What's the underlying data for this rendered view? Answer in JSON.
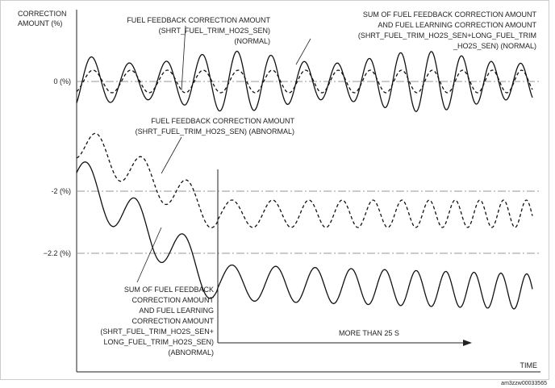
{
  "axis": {
    "y_label": [
      "CORRECTION",
      "AMOUNT (%)"
    ],
    "x_label": "TIME",
    "levels": [
      "0 (%)",
      "-2 (%)",
      "−2.2 (%)"
    ]
  },
  "annotations": {
    "normal_feedback": [
      "FUEL FEEDBACK CORRECTION AMOUNT",
      "(SHRT_FUEL_TRIM_HO2S_SEN)",
      "(NORMAL)"
    ],
    "normal_sum": [
      "SUM OF FUEL FEEDBACK CORRECTION AMOUNT",
      "AND FUEL LEARNING CORRECTION AMOUNT",
      "(SHRT_FUEL_TRIM_HO2S_SEN+LONG_FUEL_TRIM",
      "_HO2S_SEN) (NORMAL)"
    ],
    "abnormal_feedback": [
      "FUEL FEEDBACK CORRECTION AMOUNT",
      "(SHRT_FUEL_TRIM_HO2S_SEN) (ABNORMAL)"
    ],
    "abnormal_sum": [
      "SUM OF FUEL FEEDBACK",
      "CORRECTION AMOUNT",
      "AND FUEL LEARNING",
      "CORRECTION AMOUNT",
      "(SHRT_FUEL_TRIM_HO2S_SEN+",
      "LONG_FUEL_TRIM_HO2S_SEN)",
      "(ABNORMAL)"
    ],
    "duration": "MORE THAN 25 S"
  },
  "figure_id": "am3zzw00033565"
}
